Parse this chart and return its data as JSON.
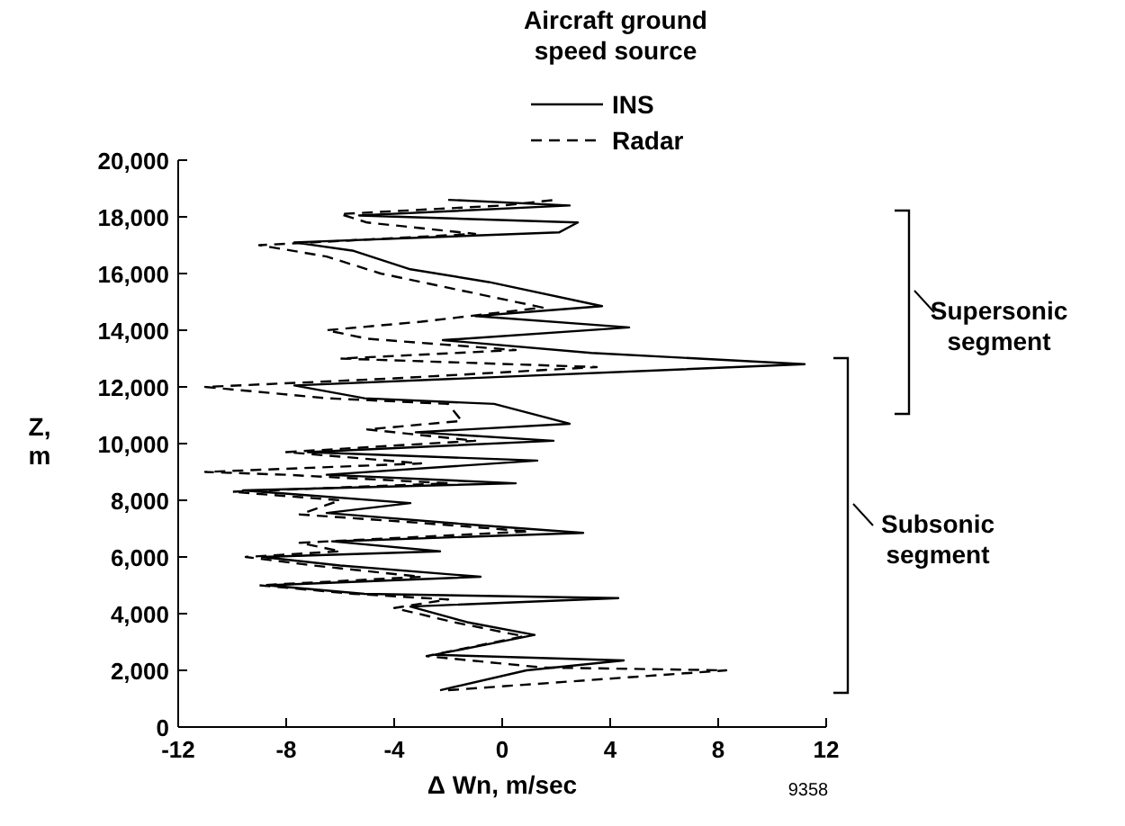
{
  "chart_data": {
    "type": "line",
    "xlabel": "Δ Wn, m/sec",
    "ylabel": "Z, m",
    "legend_title": "Aircraft ground speed source",
    "legend": "top right",
    "xlim": [
      -12,
      12
    ],
    "xticks": [
      -12,
      -8,
      -4,
      0,
      4,
      8,
      12
    ],
    "ylim": [
      0,
      20000
    ],
    "yticks": [
      {
        "value": 0,
        "label": "0"
      },
      {
        "value": 2000,
        "label": "2,000"
      },
      {
        "value": 4000,
        "label": "4,000"
      },
      {
        "value": 6000,
        "label": "6,000"
      },
      {
        "value": 8000,
        "label": "8,000"
      },
      {
        "value": 10000,
        "label": "10,000"
      },
      {
        "value": 12000,
        "label": "12,000"
      },
      {
        "value": 14000,
        "label": "14,000"
      },
      {
        "value": 16000,
        "label": "16,000"
      },
      {
        "value": 18000,
        "label": "18,000"
      },
      {
        "value": 20000,
        "label": "20,000"
      }
    ],
    "annotations": [
      "Supersonic segment",
      "Subsonic segment",
      "9358"
    ],
    "series": [
      {
        "name": "INS",
        "color": "#000000",
        "line_style": "solid",
        "x": [
          -2.3,
          0.9,
          4.5,
          -2.5,
          1.2,
          -1.3,
          -3.4,
          4.3,
          -5.1,
          -8.7,
          -0.8,
          -6.0,
          -8.9,
          -2.3,
          -6.3,
          3.0,
          -1.3,
          -6.5,
          -3.4,
          -7.5,
          -9.6,
          0.5,
          -6.5,
          1.3,
          -7.2,
          1.9,
          -3.2,
          2.5,
          -0.3,
          -5.1,
          -7.7,
          11.2,
          3.3,
          -2.2,
          4.7,
          -1.0,
          3.7,
          -0.5,
          -3.4,
          -5.5,
          -7.7,
          2.1,
          2.8,
          -5.3,
          2.5,
          -2.0
        ],
        "values": [
          1300,
          2000,
          2350,
          2550,
          3250,
          3700,
          4250,
          4550,
          4700,
          5000,
          5300,
          5700,
          6000,
          6200,
          6550,
          6850,
          7150,
          7550,
          7900,
          8200,
          8350,
          8600,
          8900,
          9400,
          9700,
          10100,
          10400,
          10700,
          11400,
          11600,
          12050,
          12800,
          13200,
          13650,
          14100,
          14500,
          14850,
          15700,
          16150,
          16800,
          17100,
          17450,
          17800,
          18050,
          18400,
          18600
        ]
      },
      {
        "name": "Radar",
        "color": "#000000",
        "line_style": "dashed",
        "x": [
          -2.0,
          8.3,
          1.5,
          -2.8,
          0.8,
          -1.8,
          -4.0,
          -2.0,
          -5.5,
          -9.0,
          -3.0,
          -7.0,
          -9.5,
          -6.0,
          -7.5,
          1.0,
          -3.0,
          -7.5,
          -6.0,
          -10.0,
          -2.0,
          -8.0,
          -11.0,
          -3.0,
          -8.0,
          -1.0,
          -5.0,
          -1.5,
          -2.0,
          -6.5,
          -11.0,
          -4.0,
          3.5,
          -6.0,
          0.5,
          -5.0,
          -6.5,
          -3.0,
          1.5,
          -1.5,
          -4.5,
          -6.5,
          -9.0,
          -1.0,
          -5.0,
          -6.0,
          0.0,
          2.0
        ],
        "values": [
          1300,
          2000,
          2100,
          2500,
          3200,
          3700,
          4200,
          4500,
          4700,
          5000,
          5300,
          5700,
          6000,
          6200,
          6500,
          6900,
          7200,
          7500,
          8000,
          8300,
          8600,
          8900,
          9000,
          9300,
          9700,
          10100,
          10500,
          10800,
          11400,
          11600,
          12000,
          12300,
          12700,
          13000,
          13300,
          13700,
          14000,
          14300,
          14800,
          15400,
          16000,
          16600,
          17000,
          17400,
          17800,
          18100,
          18400,
          18600
        ]
      }
    ]
  }
}
